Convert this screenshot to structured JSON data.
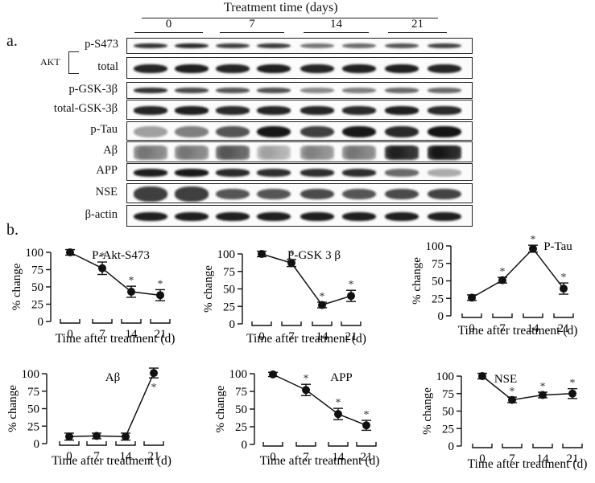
{
  "figure": {
    "panel_a_label": "a.",
    "panel_b_label": "b.",
    "header_title": "Treatment  time (days)",
    "timepoints": [
      "0",
      "7",
      "14",
      "21"
    ],
    "akt_group_label": "AKT",
    "blot_rows": [
      {
        "label": "p-S473",
        "intensities": [
          0.85,
          0.9,
          0.8,
          0.82,
          0.55,
          0.6,
          0.7,
          0.78
        ],
        "style": "thin"
      },
      {
        "label": "total",
        "intensities": [
          0.92,
          0.95,
          0.92,
          0.95,
          0.92,
          0.94,
          0.95,
          0.92
        ],
        "style": "normal"
      },
      {
        "label": "p-GSK-3β",
        "intensities": [
          0.85,
          0.75,
          0.7,
          0.72,
          0.45,
          0.5,
          0.6,
          0.6
        ],
        "style": "thin"
      },
      {
        "label": "total-GSK-3β",
        "intensities": [
          0.92,
          0.95,
          0.9,
          0.92,
          0.92,
          0.9,
          0.95,
          0.9
        ],
        "style": "normal"
      },
      {
        "label": "p-Tau",
        "intensities": [
          0.35,
          0.5,
          0.7,
          0.98,
          0.8,
          0.98,
          0.9,
          1.0
        ],
        "style": "wide"
      },
      {
        "label": "Aβ",
        "intensities": [
          0.45,
          0.45,
          0.6,
          0.25,
          0.4,
          0.45,
          0.85,
          0.9
        ],
        "style": "speckle"
      },
      {
        "label": "APP",
        "intensities": [
          0.95,
          0.98,
          0.9,
          0.88,
          0.88,
          0.88,
          0.6,
          0.3
        ],
        "style": "normal"
      },
      {
        "label": "NSE",
        "intensities": [
          0.8,
          0.8,
          0.7,
          0.7,
          0.75,
          0.7,
          0.75,
          0.78
        ],
        "style": "double"
      },
      {
        "label": "β-actin",
        "intensities": [
          0.95,
          0.95,
          0.95,
          0.95,
          0.95,
          0.95,
          0.95,
          0.95
        ],
        "style": "normal"
      }
    ]
  },
  "chart_data": [
    {
      "type": "line",
      "title": "P-Akt-S473",
      "x": [
        "0",
        "7",
        "14",
        "21"
      ],
      "values": [
        100,
        77,
        43,
        38
      ],
      "errors": [
        4,
        9,
        8,
        8
      ],
      "significant": [
        false,
        true,
        true,
        true
      ],
      "xlabel": "Time after treatment (d)",
      "ylabel": "% change",
      "yticks": [
        0,
        25,
        50,
        75,
        100
      ],
      "ylim": [
        0,
        100
      ],
      "grid": false
    },
    {
      "type": "line",
      "title": "P-GSK 3 β",
      "x": [
        "0",
        "7",
        "14",
        "21"
      ],
      "values": [
        100,
        87,
        27,
        40
      ],
      "errors": [
        4,
        5,
        4,
        8
      ],
      "significant": [
        false,
        true,
        true,
        true
      ],
      "xlabel": "Time after treatment (d)",
      "ylabel": "% change",
      "yticks": [
        0,
        25,
        50,
        75,
        100
      ],
      "ylim": [
        0,
        100
      ],
      "grid": false
    },
    {
      "type": "line",
      "title": "P-Tau",
      "x": [
        "0",
        "7",
        "14",
        "21"
      ],
      "values": [
        26,
        51,
        96,
        39
      ],
      "errors": [
        4,
        4,
        5,
        8
      ],
      "significant": [
        false,
        true,
        true,
        true
      ],
      "xlabel": "Time after treatment (d)",
      "ylabel": "% change",
      "yticks": [
        0,
        25,
        50,
        75,
        100
      ],
      "ylim": [
        0,
        100
      ],
      "grid": false
    },
    {
      "type": "line",
      "title": "Aβ",
      "x": [
        "0",
        "7",
        "14",
        "21"
      ],
      "values": [
        10,
        11,
        10,
        101
      ],
      "errors": [
        5,
        4,
        5,
        7
      ],
      "significant": [
        false,
        false,
        false,
        true
      ],
      "xlabel": "Time after treatment (d)",
      "ylabel": "% change",
      "yticks": [
        0,
        25,
        50,
        75,
        100
      ],
      "ylim": [
        0,
        100
      ],
      "grid": false
    },
    {
      "type": "line",
      "title": "APP",
      "x": [
        "0",
        "7",
        "14",
        "21"
      ],
      "values": [
        99,
        77,
        43,
        27
      ],
      "errors": [
        3,
        8,
        8,
        7
      ],
      "significant": [
        false,
        true,
        true,
        true
      ],
      "xlabel": "Time after treatment (d)",
      "ylabel": "% change",
      "yticks": [
        0,
        25,
        50,
        75,
        100
      ],
      "ylim": [
        0,
        100
      ],
      "grid": false
    },
    {
      "type": "line",
      "title": "NSE",
      "x": [
        "0",
        "7",
        "14",
        "21"
      ],
      "values": [
        100,
        66,
        73,
        75
      ],
      "errors": [
        4,
        4,
        4,
        7
      ],
      "significant": [
        false,
        true,
        true,
        true
      ],
      "xlabel": "Time after treatment (d)",
      "ylabel": "% change",
      "yticks": [
        0,
        25,
        50,
        75,
        100
      ],
      "ylim": [
        0,
        100
      ],
      "grid": false
    }
  ]
}
